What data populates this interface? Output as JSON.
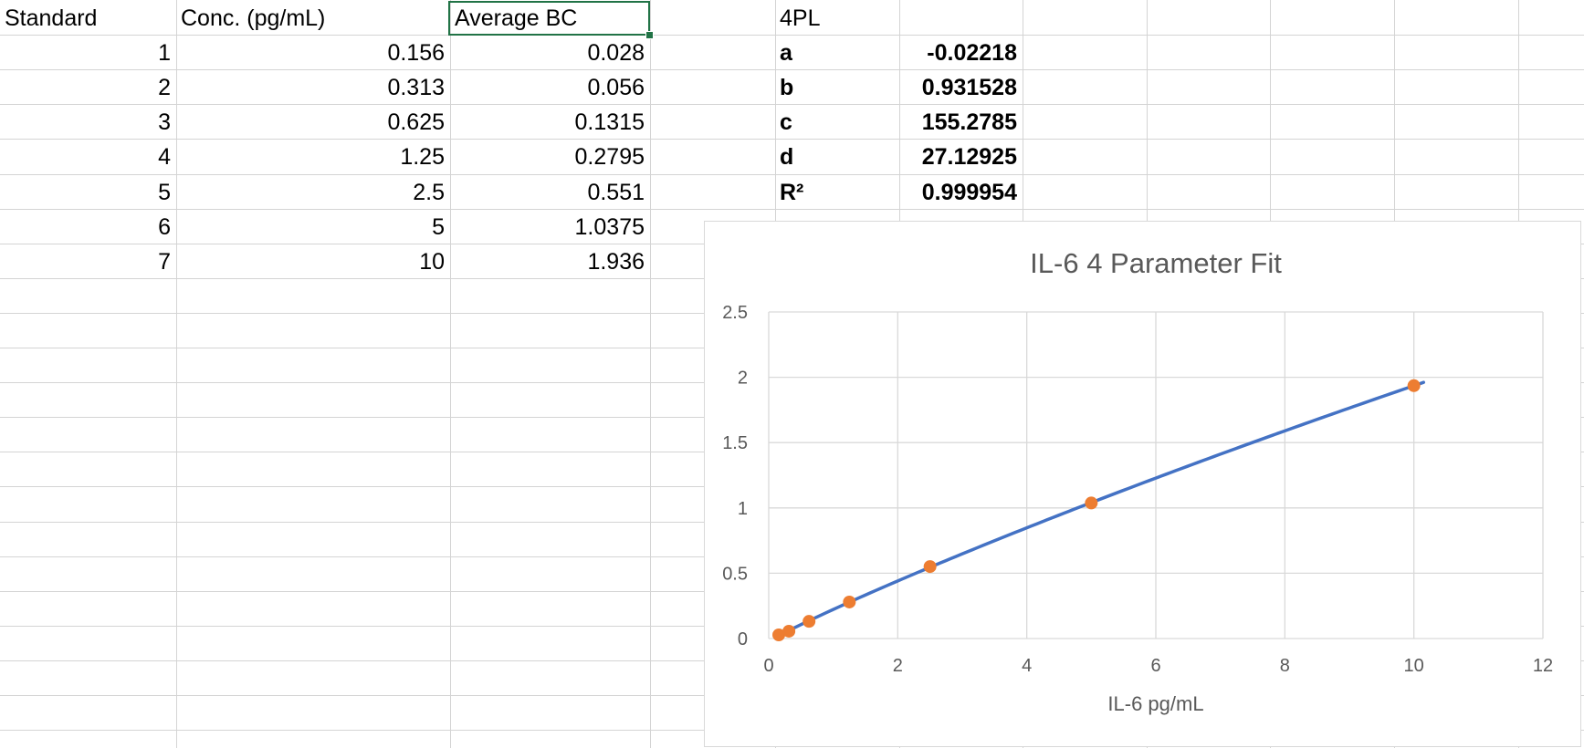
{
  "table": {
    "headers": [
      "Standard",
      "Conc. (pg/mL)",
      "Average BC"
    ],
    "rows": [
      [
        "1",
        "0.156",
        "0.028"
      ],
      [
        "2",
        "0.313",
        "0.056"
      ],
      [
        "3",
        "0.625",
        "0.1315"
      ],
      [
        "4",
        "1.25",
        "0.2795"
      ],
      [
        "5",
        "2.5",
        "0.551"
      ],
      [
        "6",
        "5",
        "1.0375"
      ],
      [
        "7",
        "10",
        "1.936"
      ]
    ]
  },
  "fit": {
    "title": "4PL",
    "params": [
      {
        "name": "a",
        "value": "-0.02218"
      },
      {
        "name": "b",
        "value": "0.931528"
      },
      {
        "name": "c",
        "value": "155.2785"
      },
      {
        "name": "d",
        "value": "27.12925"
      },
      {
        "name": "R²",
        "value": "0.999954"
      }
    ]
  },
  "colors": {
    "fit_line": "#4472C4",
    "points": "#ED7D31",
    "selection": "#217346"
  },
  "chart_data": {
    "type": "scatter",
    "title": "IL-6 4 Parameter Fit",
    "xlabel": "IL-6 pg/mL",
    "ylabel": "",
    "xlim": [
      0,
      12
    ],
    "ylim": [
      0,
      2.5
    ],
    "xticks": [
      "0",
      "2",
      "4",
      "6",
      "8",
      "10",
      "12"
    ],
    "yticks": [
      "0",
      "0.5",
      "1",
      "1.5",
      "2",
      "2.5"
    ],
    "grid": true,
    "legend": "none",
    "series": [
      {
        "type": "scatter",
        "x": [
          0.156,
          0.313,
          0.625,
          1.25,
          2.5,
          5,
          10
        ],
        "y": [
          0.028,
          0.056,
          0.1315,
          0.2795,
          0.551,
          1.0375,
          1.936
        ]
      },
      {
        "type": "line",
        "x_range": [
          0.156,
          10.15
        ],
        "model": "4PL"
      }
    ]
  }
}
